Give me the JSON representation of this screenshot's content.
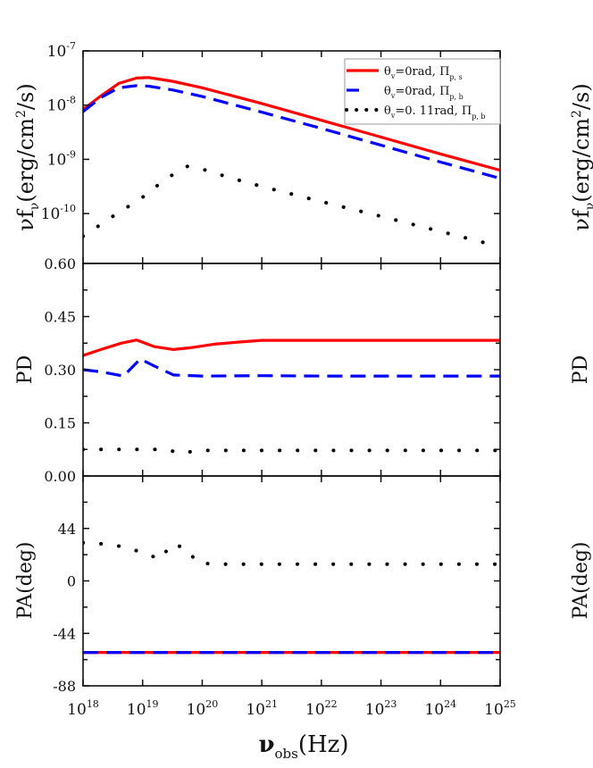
{
  "chart_data": [
    {
      "type": "line",
      "panel": "spectrum",
      "ylabel": {
        "main": "νf",
        "sub": "ν",
        "rest": "(erg/cm",
        "sup": "2",
        "end": "/s)"
      },
      "yscale": "log",
      "ylim_log10": [
        -10.92,
        -7
      ],
      "yticks": [
        {
          "base": "10",
          "exp": "-7",
          "v": -7
        },
        {
          "base": "10",
          "exp": "-8",
          "v": -8
        },
        {
          "base": "10",
          "exp": "-9",
          "v": -9
        },
        {
          "base": "10",
          "exp": "-10",
          "v": -10
        }
      ],
      "legend": {
        "placement": "top-right",
        "entries": [
          {
            "theta": "θ",
            "tsub": "v",
            "val": "=0rad, Π",
            "psub": "p, s"
          },
          {
            "theta": "θ",
            "tsub": "v",
            "val": "=0rad, Π",
            "psub": "p, b"
          },
          {
            "theta": "θ",
            "tsub": "v",
            "val": "=0. 11rad, Π",
            "psub": "p, b"
          }
        ]
      },
      "series": [
        {
          "style": "solid",
          "color": "#ff0000",
          "log_x": [
            18,
            18.3,
            18.6,
            18.9,
            19.1,
            19.5,
            20,
            21,
            22,
            23,
            24,
            25
          ],
          "log_y": [
            -8.08,
            -7.83,
            -7.6,
            -7.5,
            -7.49,
            -7.56,
            -7.68,
            -7.97,
            -8.28,
            -8.59,
            -8.9,
            -9.2
          ]
        },
        {
          "style": "dashed",
          "color": "#0000ff",
          "log_x": [
            18,
            18.3,
            18.6,
            18.9,
            19.1,
            19.5,
            20,
            21,
            22,
            23,
            24,
            25
          ],
          "log_y": [
            -8.12,
            -7.86,
            -7.68,
            -7.64,
            -7.65,
            -7.72,
            -7.84,
            -8.13,
            -8.43,
            -8.74,
            -9.05,
            -9.35
          ]
        },
        {
          "style": "dotted",
          "color": "#000000",
          "log_x": [
            18,
            18.5,
            19,
            19.4,
            19.75,
            20,
            20.5,
            21,
            22,
            23,
            24,
            25
          ],
          "log_y": [
            -10.42,
            -10.05,
            -9.7,
            -9.35,
            -9.13,
            -9.18,
            -9.35,
            -9.5,
            -9.78,
            -10.05,
            -10.33,
            -10.61
          ]
        }
      ]
    },
    {
      "type": "line",
      "panel": "PD",
      "ylabel": "PD",
      "ylim": [
        0,
        0.6
      ],
      "yticks": [
        "0.00",
        "0.15",
        "0.30",
        "0.45",
        "0.60"
      ],
      "series": [
        {
          "style": "solid",
          "color": "#ff0000",
          "log_x": [
            18,
            18.3,
            18.64,
            18.9,
            19.2,
            19.52,
            19.8,
            20.2,
            20.6,
            21,
            22,
            25
          ],
          "y": [
            0.34,
            0.357,
            0.375,
            0.384,
            0.365,
            0.357,
            0.362,
            0.372,
            0.378,
            0.383,
            0.383,
            0.383
          ]
        },
        {
          "style": "dashed",
          "color": "#0000ff",
          "log_x": [
            18,
            18.3,
            18.68,
            18.96,
            19.2,
            19.52,
            20,
            21,
            22,
            25
          ],
          "y": [
            0.3,
            0.294,
            0.282,
            0.33,
            0.31,
            0.285,
            0.282,
            0.283,
            0.282,
            0.282
          ]
        },
        {
          "style": "dotted",
          "color": "#000000",
          "log_x": [
            18,
            19.4,
            19.65,
            19.9,
            25
          ],
          "y": [
            0.075,
            0.075,
            0.063,
            0.072,
            0.072
          ]
        }
      ]
    },
    {
      "type": "line",
      "panel": "PA",
      "ylabel": "PA(deg)",
      "ylim": [
        -88,
        88
      ],
      "yticks": [
        "-88",
        "-44",
        "0",
        "44"
      ],
      "xlabel": {
        "main": "ν",
        "sub": "obs",
        "rest": "(Hz)"
      },
      "xscale": "log",
      "xlim_log10": [
        18,
        25
      ],
      "xticks": [
        {
          "base": "10",
          "exp": "18"
        },
        {
          "base": "10",
          "exp": "19"
        },
        {
          "base": "10",
          "exp": "20"
        },
        {
          "base": "10",
          "exp": "21"
        },
        {
          "base": "10",
          "exp": "22"
        },
        {
          "base": "10",
          "exp": "23"
        },
        {
          "base": "10",
          "exp": "24"
        },
        {
          "base": "10",
          "exp": "25"
        }
      ],
      "series": [
        {
          "style": "solid",
          "color": "#ff0000",
          "log_x": [
            18,
            25
          ],
          "y": [
            -60,
            -60
          ]
        },
        {
          "style": "dashed",
          "color": "#0000ff",
          "log_x": [
            18,
            25
          ],
          "y": [
            -60,
            -60
          ]
        },
        {
          "style": "dotted",
          "color": "#000000",
          "log_x": [
            18,
            18.32,
            18.64,
            18.94,
            19.31,
            19.47,
            19.73,
            19.92,
            20.3,
            25
          ],
          "y": [
            32,
            31,
            29,
            24.7,
            18,
            31,
            27.6,
            15,
            14,
            14
          ]
        }
      ]
    }
  ],
  "right_figure_labels": {
    "spectrum": {
      "main": "νf",
      "sub": "ν",
      "rest": "(erg/cm",
      "sup": "2",
      "end": "/s)"
    },
    "pd": "PD",
    "pa": "PA(deg)"
  }
}
